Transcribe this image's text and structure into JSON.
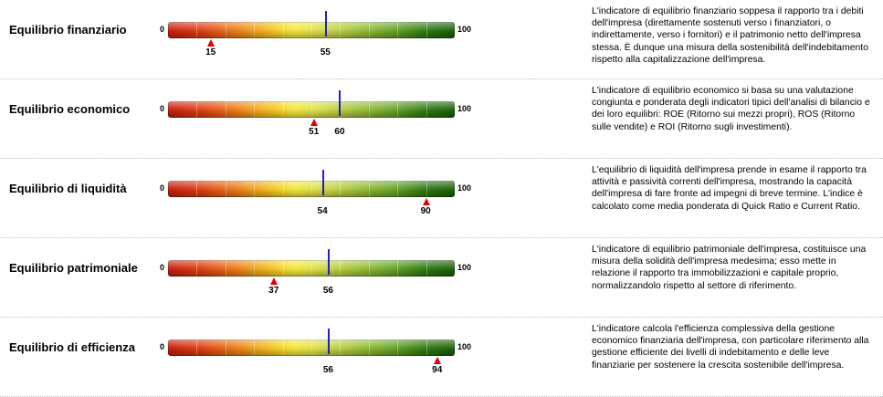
{
  "scale": {
    "min_label": "0",
    "max_label": "100"
  },
  "colors": {
    "marker_line": "#2020c8",
    "marker_triangle": "#e00000"
  },
  "indicators": [
    {
      "title": "Equilibrio finanziario",
      "marker_value": 15,
      "marker_label": "15",
      "line_value": 55,
      "line_label": "55",
      "description": "L'indicatore di equilibrio finanziario soppesa il rapporto tra i debiti dell'impresa (direttamente sostenuti verso i finanziatori, o indirettamente, verso i fornitori) e il patrimonio netto dell'impresa stessa. È dunque una misura della sostenibilità dell'indebitamento rispetto alla capitalizzazione dell'impresa."
    },
    {
      "title": "Equilibrio economico",
      "marker_value": 51,
      "marker_label": "51",
      "line_value": 60,
      "line_label": "60",
      "description": "L'indicatore di equilibrio economico si basa su una valutazione congiunta e ponderata degli indicatori tipici dell'analisi di bilancio e dei loro equilibri: ROE (Ritorno sui mezzi propri), ROS (Ritorno sulle vendite) e ROI (Ritorno sugli investimenti)."
    },
    {
      "title": "Equilibrio di liquidità",
      "marker_value": 90,
      "marker_label": "90",
      "line_value": 54,
      "line_label": "54",
      "description": "L'equilibrio di liquidità dell'impresa prende in esame il rapporto tra attività e passività correnti dell'impresa, mostrando la capacità dell'impresa di fare fronte ad impegni di breve termine. L'indice è calcolato come media ponderata di Quick Ratio e Current Ratio."
    },
    {
      "title": "Equilibrio patrimoniale",
      "marker_value": 37,
      "marker_label": "37",
      "line_value": 56,
      "line_label": "56",
      "description": "L'indicatore di equilibrio patrimoniale dell'impresa, costituisce una misura della solidità dell'impresa medesima; esso mette in relazione il rapporto tra immobilizzazioni e capitale proprio, normalizzandolo rispetto al settore di riferimento."
    },
    {
      "title": "Equilibrio di efficienza",
      "marker_value": 94,
      "marker_label": "94",
      "line_value": 56,
      "line_label": "56",
      "description": "L'indicatore calcola l'efficienza complessiva della gestione economico finanziaria dell'impresa, con particolare riferimento alla gestione efficiente dei livelli di indebitamento e delle leve finanziarie per sostenere la crescita sostenibile dell'impresa."
    }
  ]
}
